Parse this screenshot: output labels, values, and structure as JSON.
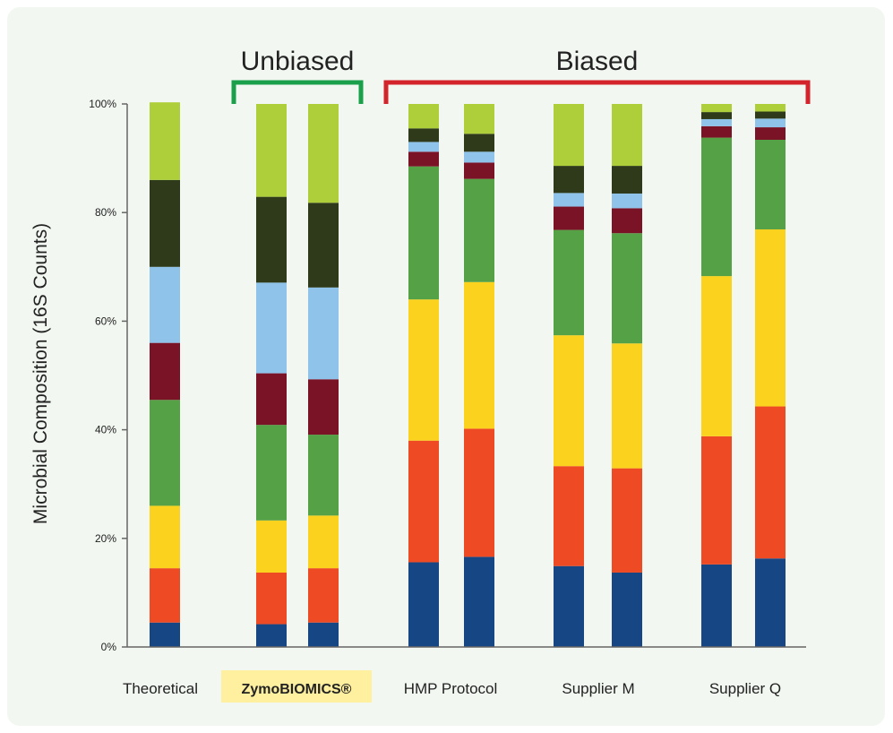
{
  "chart_data": {
    "type": "bar",
    "stacked": true,
    "ylabel": "Microbial Composition (16S Counts)",
    "ylim": [
      0,
      100
    ],
    "yticks": [
      "0%",
      "20%",
      "40%",
      "60%",
      "80%",
      "100%"
    ],
    "categories": [
      "Theoretical",
      "ZymoBIOMICS®",
      "HMP Protocol",
      "Supplier M",
      "Supplier Q"
    ],
    "bars": [
      {
        "group": 0,
        "segments": [
          4.5,
          10,
          11.5,
          19.5,
          10.5,
          14,
          16,
          14.3
        ]
      },
      {
        "group": 1,
        "segments": [
          4.2,
          9.5,
          9.6,
          17.6,
          9.5,
          16.7,
          15.8,
          17.1
        ]
      },
      {
        "group": 1,
        "segments": [
          4.5,
          10,
          9.7,
          14.9,
          10.2,
          16.9,
          15.6,
          18.2
        ]
      },
      {
        "group": 2,
        "segments": [
          15.6,
          22.4,
          26,
          24.5,
          2.7,
          1.8,
          2.5,
          4.5
        ]
      },
      {
        "group": 2,
        "segments": [
          16.6,
          23.6,
          27,
          19,
          3,
          2,
          3.3,
          5.5
        ]
      },
      {
        "group": 3,
        "segments": [
          14.9,
          18.4,
          24.1,
          19.4,
          4.3,
          2.5,
          5,
          11.4
        ]
      },
      {
        "group": 3,
        "segments": [
          13.7,
          19.2,
          23,
          20.3,
          4.6,
          2.7,
          5.1,
          11.4
        ]
      },
      {
        "group": 4,
        "segments": [
          15.2,
          23.6,
          29.5,
          25.5,
          2.1,
          1.3,
          1.3,
          1.5
        ]
      },
      {
        "group": 4,
        "segments": [
          16.3,
          28,
          32.6,
          16.5,
          2.3,
          1.6,
          1.3,
          1.4
        ]
      }
    ],
    "segment_colors": [
      "#164784",
      "#ee4b24",
      "#fbd31e",
      "#55a146",
      "#7b1327",
      "#8fc3ea",
      "#2e3a1a",
      "#aecf3a"
    ],
    "highlight_category": "ZymoBIOMICS®",
    "highlight_color": "#fff0a0",
    "brackets": [
      {
        "label": "Unbiased",
        "color": "#1aa04a",
        "from_bar": 1,
        "to_bar": 2
      },
      {
        "label": "Biased",
        "color": "#d3242b",
        "from_bar": 3,
        "to_bar": 8
      }
    ]
  }
}
